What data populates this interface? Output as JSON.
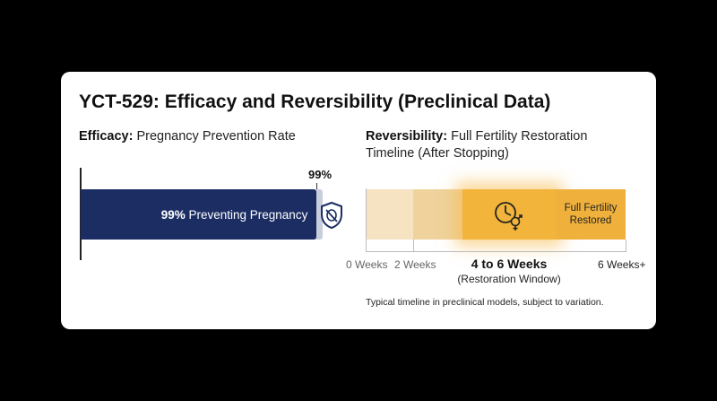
{
  "title": "YCT-529: Efficacy and Reversibility (Preclinical Data)",
  "efficacy": {
    "heading_bold": "Efficacy:",
    "heading_rest": " Pregnancy Prevention Rate",
    "value_label": "99%",
    "bar_pct": "99%",
    "bar_text": " Preventing Pregnancy",
    "icon": "shield-no-pregnancy-icon"
  },
  "reversibility": {
    "heading_bold": "Reversibility:",
    "heading_rest": " Full Fertility Restoration Timeline (After Stopping)",
    "ticks": [
      "0 Weeks",
      "2 Weeks",
      "6 Weeks+"
    ],
    "window_title": "4 to 6 Weeks",
    "window_sub": "(Restoration Window)",
    "restored_label": "Full Fertility Restored",
    "icon": "clock-gender-icon",
    "note": "Typical timeline in preclinical models, subject to variation."
  },
  "colors": {
    "efficacy_bar": "#1b2d63",
    "efficacy_track": "#c9cedd",
    "phase_early": "#f5e3c2",
    "phase_mid": "#efd29c",
    "restoration_window": "#f2b43a",
    "restored": "#f0b13c"
  },
  "chart_data": [
    {
      "type": "bar",
      "categories": [
        "Efficacy"
      ],
      "values": [
        99
      ],
      "xlim": [
        0,
        100
      ],
      "unit": "%",
      "data_labels": [
        "99%"
      ]
    },
    {
      "type": "bar",
      "x_ticks": [
        "0 Weeks",
        "2 Weeks",
        "6 Weeks+"
      ],
      "segments": [
        {
          "start": 0,
          "end": 2
        },
        {
          "start": 2,
          "end": 4
        },
        {
          "start": 4,
          "end": 6,
          "label": "4 to 6 Weeks",
          "sublabel": "(Restoration Window)"
        },
        {
          "start": 6,
          "end": 7.5,
          "label": "Full Fertility Restored"
        }
      ]
    }
  ]
}
